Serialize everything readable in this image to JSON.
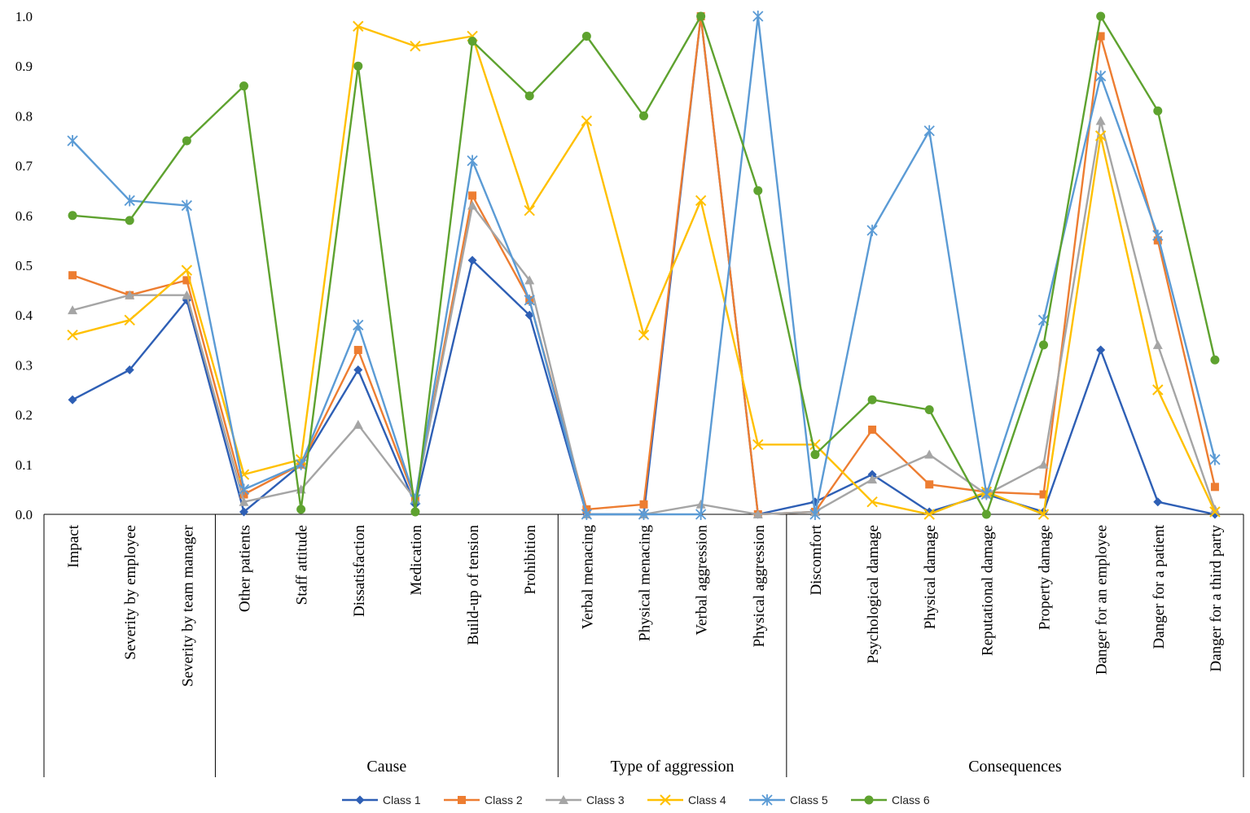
{
  "chart_data": {
    "type": "line",
    "title": "",
    "xlabel": "",
    "ylabel": "",
    "ylim": [
      0,
      1.0
    ],
    "yticks": [
      "0.0",
      "0.1",
      "0.2",
      "0.3",
      "0.4",
      "0.5",
      "0.6",
      "0.7",
      "0.8",
      "0.9",
      "1.0"
    ],
    "grid": false,
    "legend_position": "bottom",
    "categories": [
      "Impact",
      "Severity by employee",
      "Severity by team manager",
      "Other patients",
      "Staff attitude",
      "Dissatisfaction",
      "Medication",
      "Build-up of tension",
      "Prohibition",
      "Verbal menacing",
      "Physical menacing",
      "Verbal aggression",
      "Physical aggression",
      "Discomfort",
      "Psychological damage",
      "Physical damage",
      "Reputational damage",
      "Property damage",
      "Danger for an employee",
      "Danger for a patient",
      "Danger for a third party"
    ],
    "groups": [
      {
        "label": "",
        "start": 0,
        "end": 2
      },
      {
        "label": "Cause",
        "start": 3,
        "end": 8
      },
      {
        "label": "Type of aggression",
        "start": 9,
        "end": 12
      },
      {
        "label": "Consequences",
        "start": 13,
        "end": 20
      }
    ],
    "series": [
      {
        "name": "Class 1",
        "color": "#2E5FB5",
        "marker": "diamond",
        "values": [
          0.23,
          0.29,
          0.43,
          0.005,
          0.1,
          0.29,
          0.02,
          0.51,
          0.4,
          0.0,
          0.0,
          1.0,
          0.0,
          0.025,
          0.08,
          0.005,
          0.04,
          0.005,
          0.33,
          0.025,
          0.0
        ]
      },
      {
        "name": "Class 2",
        "color": "#ED7D31",
        "marker": "square",
        "values": [
          0.48,
          0.44,
          0.47,
          0.04,
          0.1,
          0.33,
          0.03,
          0.64,
          0.43,
          0.01,
          0.02,
          1.0,
          0.0,
          0.005,
          0.17,
          0.06,
          0.045,
          0.04,
          0.96,
          0.55,
          0.055
        ]
      },
      {
        "name": "Class 3",
        "color": "#A5A5A5",
        "marker": "triangle",
        "values": [
          0.41,
          0.44,
          0.44,
          0.025,
          0.05,
          0.18,
          0.03,
          0.62,
          0.47,
          0.0,
          0.0,
          0.02,
          0.0,
          0.005,
          0.07,
          0.12,
          0.04,
          0.1,
          0.79,
          0.34,
          0.01
        ]
      },
      {
        "name": "Class 4",
        "color": "#FFC000",
        "marker": "x",
        "values": [
          0.36,
          0.39,
          0.49,
          0.08,
          0.11,
          0.98,
          0.94,
          0.96,
          0.61,
          0.79,
          0.36,
          0.63,
          0.14,
          0.14,
          0.025,
          0.0,
          0.045,
          0.0,
          0.76,
          0.25,
          0.005
        ]
      },
      {
        "name": "Class 5",
        "color": "#5B9BD5",
        "marker": "star",
        "values": [
          0.75,
          0.63,
          0.62,
          0.05,
          0.1,
          0.38,
          0.03,
          0.71,
          0.43,
          0.0,
          0.0,
          0.0,
          1.0,
          0.0,
          0.57,
          0.77,
          0.04,
          0.39,
          0.88,
          0.56,
          0.11
        ]
      },
      {
        "name": "Class 6",
        "color": "#5EA22F",
        "marker": "circle",
        "values": [
          0.6,
          0.59,
          0.75,
          0.86,
          0.01,
          0.9,
          0.005,
          0.95,
          0.84,
          0.96,
          0.8,
          1.0,
          0.65,
          0.12,
          0.23,
          0.21,
          0.0,
          0.34,
          1.0,
          0.81,
          0.31
        ]
      }
    ]
  }
}
